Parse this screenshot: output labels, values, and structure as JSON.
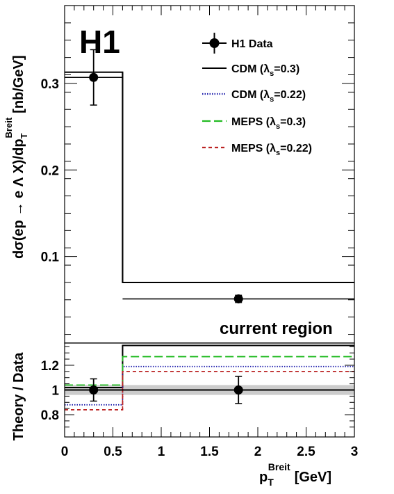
{
  "chart_data": [
    {
      "type": "line",
      "brand_label": "H1",
      "region_label": "current region",
      "ylabel_main": "dσ(ep → e Λ X)/dp",
      "ylabel_sub": "T",
      "ylabel_sup": "Breit",
      "ylabel_unit": "[nb/GeV]",
      "xlim": [
        0,
        3
      ],
      "ylim": [
        0,
        0.39
      ],
      "yticks": [
        0.1,
        0.2,
        0.3
      ],
      "ytick_labels": [
        "0.1",
        "0.2",
        "0.3"
      ],
      "bin_edges": [
        0,
        0.6,
        3
      ],
      "legend_position": "top-right",
      "series": [
        {
          "name": "H1 Data",
          "x": [
            0.3,
            1.8
          ],
          "values": [
            0.307,
            0.051
          ],
          "errors": [
            0.032,
            0.0042
          ],
          "color": "#000000",
          "style": "marker"
        },
        {
          "name": "CDM (λs=0.3)",
          "name_main": "CDM (λ",
          "name_sub": "s",
          "name_rest": "=0.3)",
          "values": [
            0.313,
            0.07
          ],
          "color": "#000000",
          "style": "solid"
        },
        {
          "name": "CDM (λs=0.22)",
          "name_main": "CDM (λ",
          "name_sub": "s",
          "name_rest": "=0.22)",
          "color": "#1a1aaa",
          "style": "dotted"
        },
        {
          "name": "MEPS (λs=0.3)",
          "name_main": "MEPS (λ",
          "name_sub": "s",
          "name_rest": "=0.3)",
          "color": "#22bb22",
          "style": "dashed"
        },
        {
          "name": "MEPS (λs=0.22)",
          "name_main": "MEPS (λ",
          "name_sub": "s",
          "name_rest": "=0.22)",
          "color": "#bb2222",
          "style": "shortdash"
        }
      ]
    },
    {
      "type": "line",
      "ylabel": "Theory / Data",
      "xlabel_main": "p",
      "xlabel_sub": "T",
      "xlabel_sup": "Breit",
      "xlabel_unit": "[GeV]",
      "xlim": [
        0,
        3
      ],
      "ylim": [
        0.62,
        1.38
      ],
      "xticks": [
        0,
        0.5,
        1,
        1.5,
        2,
        2.5,
        3
      ],
      "xtick_labels": [
        "0",
        "0.5",
        "1",
        "1.5",
        "2",
        "2.5",
        "3"
      ],
      "yticks": [
        0.8,
        1.0,
        1.2
      ],
      "ytick_labels": [
        "0.8",
        "1",
        "1.2"
      ],
      "band": [
        0.96,
        1.04
      ],
      "band_color": "#cccccc",
      "bin_edges": [
        0,
        0.6,
        3
      ],
      "data_points": {
        "x": [
          0.3,
          1.8
        ],
        "y": [
          1.0,
          1.0
        ],
        "errors": [
          0.09,
          0.11
        ]
      },
      "series": [
        {
          "name": "CDM (λs=0.3)",
          "values": [
            1.02,
            1.36
          ],
          "color": "#000000",
          "style": "solid"
        },
        {
          "name": "CDM (λs=0.22)",
          "values": [
            0.88,
            1.19
          ],
          "color": "#1a1aaa",
          "style": "dotted"
        },
        {
          "name": "MEPS (λs=0.3)",
          "values": [
            1.04,
            1.27
          ],
          "color": "#22bb22",
          "style": "dashed"
        },
        {
          "name": "MEPS (λs=0.22)",
          "values": [
            0.84,
            1.15
          ],
          "color": "#bb2222",
          "style": "shortdash"
        }
      ]
    }
  ]
}
